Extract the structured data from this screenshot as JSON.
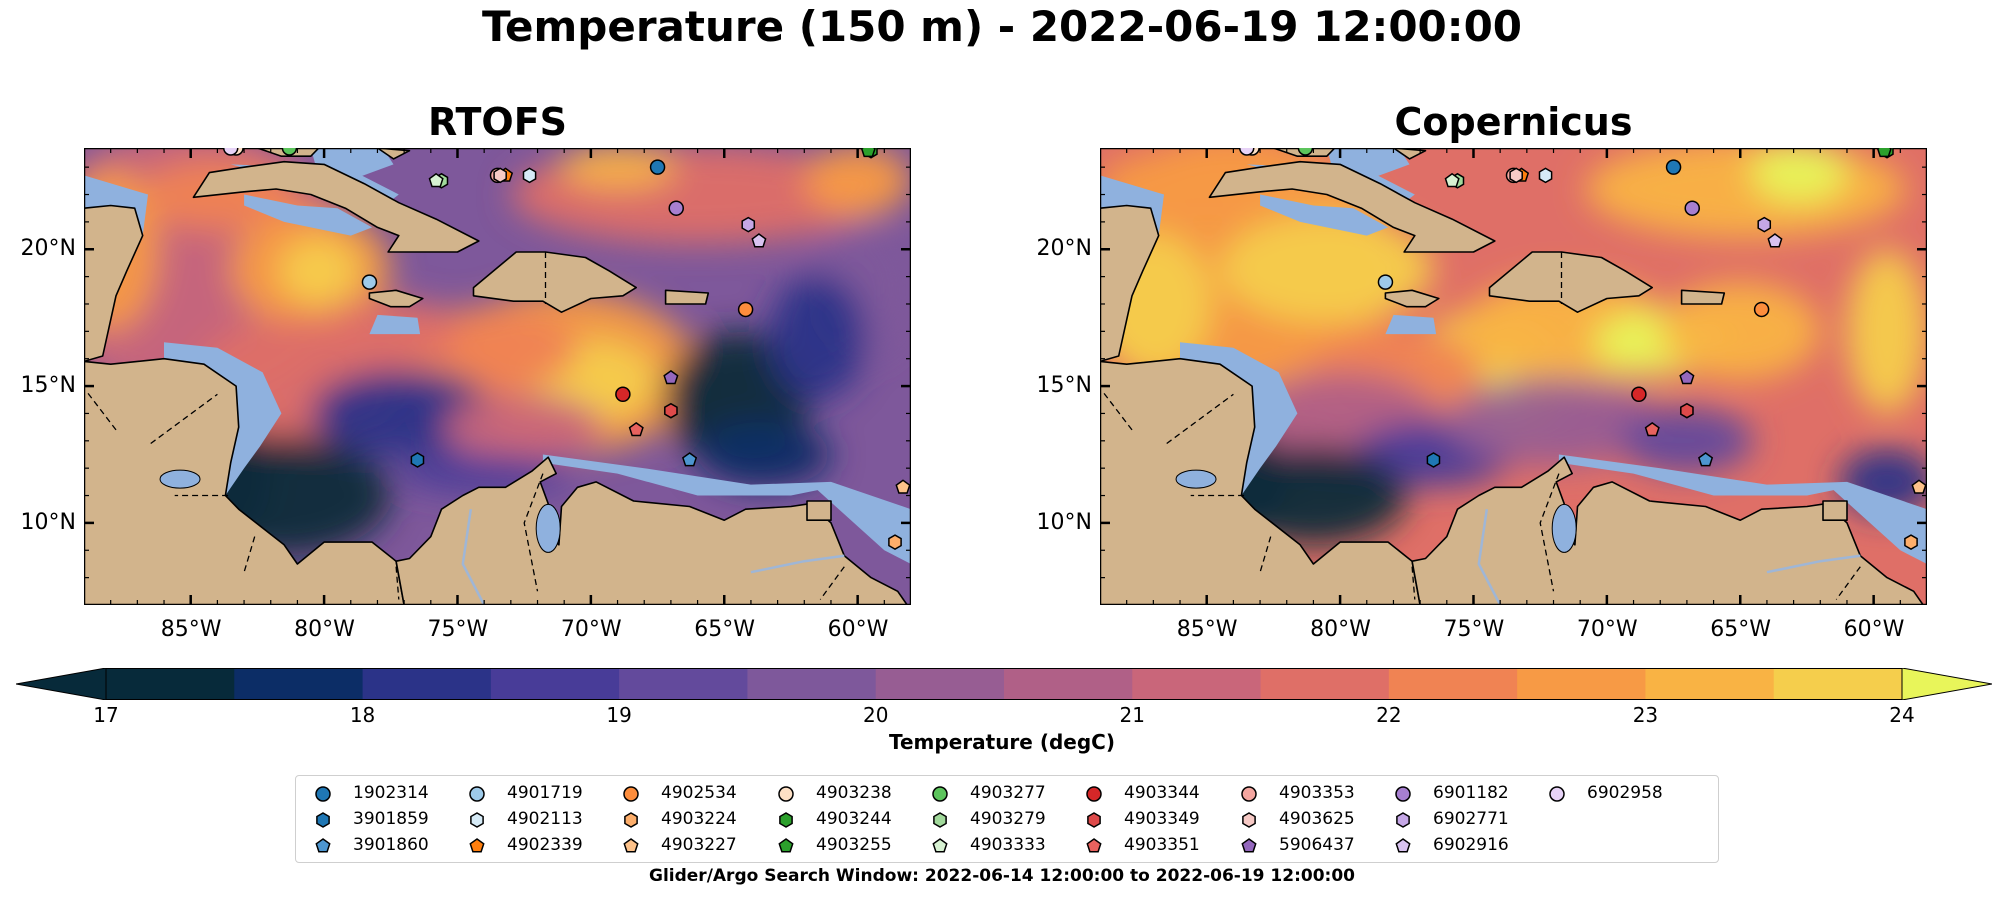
{
  "title": "Temperature (150 m) - 2022-06-19 12:00:00",
  "chart_data": {
    "type": "heatmap",
    "panels": [
      {
        "name": "RTOFS"
      },
      {
        "name": "Copernicus"
      }
    ],
    "lon_range": [
      -89,
      -58
    ],
    "lat_range": [
      7,
      23.7
    ],
    "lon_ticks": [
      "85°W",
      "80°W",
      "75°W",
      "70°W",
      "65°W",
      "60°W"
    ],
    "lon_tick_values": [
      -85,
      -80,
      -75,
      -70,
      -65,
      -60
    ],
    "lat_ticks": [
      "20°N",
      "15°N",
      "10°N"
    ],
    "lat_tick_values": [
      20,
      15,
      10
    ],
    "colorbar": {
      "label": "Temperature (degC)",
      "min": 17,
      "max": 24,
      "ticks": [
        "17",
        "18",
        "19",
        "20",
        "21",
        "22",
        "23",
        "24"
      ],
      "tick_values": [
        17,
        18,
        19,
        20,
        21,
        22,
        23,
        24
      ],
      "colors": [
        "#072a3a",
        "#0c2d66",
        "#2b3388",
        "#483c98",
        "#634a9c",
        "#7e589b",
        "#975d93",
        "#b06087",
        "#c9667a",
        "#df6f67",
        "#f08353",
        "#f79a45",
        "#f9b344",
        "#f5ce4c",
        "#e8f55a"
      ]
    },
    "floats": [
      {
        "id": "1902314",
        "marker": "circle",
        "color": "#1f77b4",
        "lon": -67.5,
        "lat": 23.0
      },
      {
        "id": "3901859",
        "marker": "hexagon",
        "color": "#1f77b4",
        "lon": -76.5,
        "lat": 12.3
      },
      {
        "id": "3901860",
        "marker": "pentagon",
        "color": "#4d96d0",
        "lon": -66.3,
        "lat": 12.3
      },
      {
        "id": "4901719",
        "marker": "circle",
        "color": "#9ecae9",
        "lon": -78.3,
        "lat": 18.8
      },
      {
        "id": "4902113",
        "marker": "hexagon",
        "color": "#d6ebf7",
        "lon": -72.3,
        "lat": 22.7
      },
      {
        "id": "4902339",
        "marker": "pentagon",
        "color": "#ff7f0e",
        "lon": -73.2,
        "lat": 22.7
      },
      {
        "id": "4902534",
        "marker": "circle",
        "color": "#fd8d3c",
        "lon": -64.2,
        "lat": 17.8
      },
      {
        "id": "4903224",
        "marker": "hexagon",
        "color": "#fdae6b",
        "lon": -58.6,
        "lat": 9.3
      },
      {
        "id": "4903227",
        "marker": "pentagon",
        "color": "#fdc28a",
        "lon": -58.3,
        "lat": 11.3
      },
      {
        "id": "4903238",
        "marker": "circle",
        "color": "#fde0c5",
        "lon": -83.3,
        "lat": 23.7
      },
      {
        "id": "4903244",
        "marker": "hexagon",
        "color": "#2ca02c",
        "lon": -59.5,
        "lat": 23.6
      },
      {
        "id": "4903255",
        "marker": "pentagon",
        "color": "#2ca02c",
        "lon": -59.6,
        "lat": 23.6
      },
      {
        "id": "4903277",
        "marker": "circle",
        "color": "#5cc45c",
        "lon": -81.3,
        "lat": 23.7
      },
      {
        "id": "4903279",
        "marker": "hexagon",
        "color": "#a1d99b",
        "lon": -75.6,
        "lat": 22.5
      },
      {
        "id": "4903333",
        "marker": "pentagon",
        "color": "#d7f2d2",
        "lon": -75.8,
        "lat": 22.5
      },
      {
        "id": "4903344",
        "marker": "circle",
        "color": "#d62728",
        "lon": -68.8,
        "lat": 14.7
      },
      {
        "id": "4903349",
        "marker": "hexagon",
        "color": "#de4a4a",
        "lon": -67.0,
        "lat": 14.1
      },
      {
        "id": "4903351",
        "marker": "pentagon",
        "color": "#e8625e",
        "lon": -68.3,
        "lat": 13.4
      },
      {
        "id": "4903353",
        "marker": "circle",
        "color": "#f4a6a0",
        "lon": -73.5,
        "lat": 22.7
      },
      {
        "id": "4903625",
        "marker": "hexagon",
        "color": "#f7cac6",
        "lon": -73.4,
        "lat": 22.7
      },
      {
        "id": "5906437",
        "marker": "pentagon",
        "color": "#9467bd",
        "lon": -67.0,
        "lat": 15.3
      },
      {
        "id": "6901182",
        "marker": "circle",
        "color": "#a77fd0",
        "lon": -66.8,
        "lat": 21.5
      },
      {
        "id": "6902771",
        "marker": "hexagon",
        "color": "#c5a7e6",
        "lon": -64.1,
        "lat": 20.9
      },
      {
        "id": "6902916",
        "marker": "pentagon",
        "color": "#d9c3f0",
        "lon": -63.7,
        "lat": 20.3
      },
      {
        "id": "6902958",
        "marker": "circle",
        "color": "#e7d3f7",
        "lon": -83.5,
        "lat": 23.7
      }
    ]
  },
  "search_window": "Glider/Argo Search Window: 2022-06-14 12:00:00 to 2022-06-19 12:00:00"
}
